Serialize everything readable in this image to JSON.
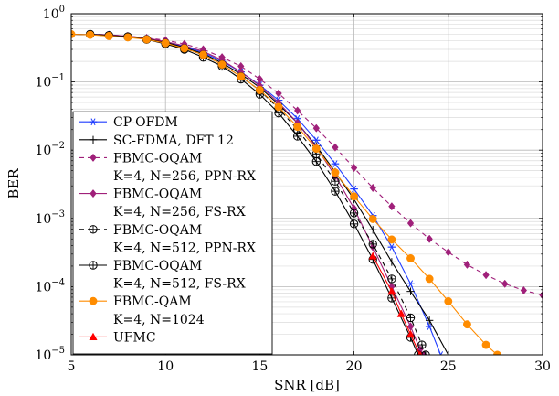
{
  "chart_data": {
    "type": "line",
    "xlabel": "SNR [dB]",
    "ylabel": "BER",
    "xlim": [
      5,
      30
    ],
    "ylim": [
      1e-05,
      1
    ],
    "yscale": "log",
    "grid": true,
    "legend_position": "bottom-left",
    "x_ticks": [
      "5",
      "10",
      "15",
      "20",
      "25",
      "30"
    ],
    "y_ticks": [
      {
        "base": "10",
        "exp": "0"
      },
      {
        "base": "10",
        "exp": "−1"
      },
      {
        "base": "10",
        "exp": "−2"
      },
      {
        "base": "10",
        "exp": "−3"
      },
      {
        "base": "10",
        "exp": "−4"
      },
      {
        "base": "10",
        "exp": "−5"
      }
    ],
    "series": [
      {
        "name": [
          "CP-OFDM"
        ],
        "color": "#1f3cff",
        "marker": "asterisk",
        "dash": "",
        "points": [
          [
            5,
            0.5
          ],
          [
            6,
            0.49
          ],
          [
            7,
            0.48
          ],
          [
            8,
            0.46
          ],
          [
            9,
            0.43
          ],
          [
            10,
            0.38
          ],
          [
            11,
            0.33
          ],
          [
            12,
            0.27
          ],
          [
            13,
            0.2
          ],
          [
            14,
            0.14
          ],
          [
            15,
            0.09
          ],
          [
            16,
            0.054
          ],
          [
            17,
            0.029
          ],
          [
            18,
            0.014
          ],
          [
            19,
            0.0063
          ],
          [
            20,
            0.0027
          ],
          [
            21,
            0.0011
          ],
          [
            22,
            0.00038
          ],
          [
            23,
            0.00011
          ],
          [
            24,
            2.6e-05
          ],
          [
            24.6,
            1e-05
          ]
        ]
      },
      {
        "name": [
          "SC-FDMA, DFT 12"
        ],
        "color": "#000000",
        "marker": "plus",
        "dash": "",
        "points": [
          [
            5,
            0.5
          ],
          [
            6,
            0.49
          ],
          [
            7,
            0.48
          ],
          [
            8,
            0.46
          ],
          [
            9,
            0.43
          ],
          [
            10,
            0.38
          ],
          [
            11,
            0.32
          ],
          [
            12,
            0.26
          ],
          [
            13,
            0.19
          ],
          [
            14,
            0.13
          ],
          [
            15,
            0.083
          ],
          [
            16,
            0.047
          ],
          [
            17,
            0.025
          ],
          [
            18,
            0.0115
          ],
          [
            19,
            0.0048
          ],
          [
            20,
            0.0019
          ],
          [
            21,
            0.00068
          ],
          [
            22,
            0.00023
          ],
          [
            23,
            8.5e-05
          ],
          [
            24,
            3.2e-05
          ],
          [
            25,
            1e-05
          ]
        ]
      },
      {
        "name": [
          "FBMC-OQAM",
          "K=4, N=256, PPN-RX"
        ],
        "color": "#a0207a",
        "marker": "diamond",
        "dash": "5,4",
        "points": [
          [
            6,
            0.5
          ],
          [
            7,
            0.49
          ],
          [
            8,
            0.47
          ],
          [
            9,
            0.44
          ],
          [
            10,
            0.41
          ],
          [
            11,
            0.36
          ],
          [
            12,
            0.3
          ],
          [
            13,
            0.23
          ],
          [
            14,
            0.17
          ],
          [
            15,
            0.11
          ],
          [
            16,
            0.068
          ],
          [
            17,
            0.038
          ],
          [
            18,
            0.021
          ],
          [
            19,
            0.011
          ],
          [
            20,
            0.0055
          ],
          [
            21,
            0.0028
          ],
          [
            22,
            0.0015
          ],
          [
            23,
            0.00085
          ],
          [
            24,
            0.0005
          ],
          [
            25,
            0.00032
          ],
          [
            26,
            0.00021
          ],
          [
            27,
            0.000148
          ],
          [
            28,
            0.00011
          ],
          [
            29,
            8.8e-05
          ],
          [
            30,
            7.5e-05
          ]
        ]
      },
      {
        "name": [
          "FBMC-OQAM",
          "K=4, N=256, FS-RX"
        ],
        "color": "#a0207a",
        "marker": "diamond",
        "dash": "",
        "points": [
          [
            6,
            0.5
          ],
          [
            7,
            0.49
          ],
          [
            8,
            0.47
          ],
          [
            9,
            0.44
          ],
          [
            10,
            0.39
          ],
          [
            11,
            0.34
          ],
          [
            12,
            0.28
          ],
          [
            13,
            0.21
          ],
          [
            14,
            0.14
          ],
          [
            15,
            0.088
          ],
          [
            16,
            0.05
          ],
          [
            17,
            0.025
          ],
          [
            18,
            0.011
          ],
          [
            19,
            0.0042
          ],
          [
            20,
            0.0014
          ],
          [
            21,
            0.00038
          ],
          [
            22,
            0.0001
          ],
          [
            23,
            2.6e-05
          ],
          [
            23.5,
            1.2e-05
          ],
          [
            23.7,
            1e-05
          ]
        ]
      },
      {
        "name": [
          "FBMC-OQAM",
          "K=4, N=512, PPN-RX"
        ],
        "color": "#000000",
        "marker": "circle-plus",
        "dash": "5,4",
        "points": [
          [
            6,
            0.5
          ],
          [
            7,
            0.48
          ],
          [
            8,
            0.46
          ],
          [
            9,
            0.42
          ],
          [
            10,
            0.37
          ],
          [
            11,
            0.31
          ],
          [
            12,
            0.25
          ],
          [
            13,
            0.18
          ],
          [
            14,
            0.12
          ],
          [
            15,
            0.075
          ],
          [
            16,
            0.041
          ],
          [
            17,
            0.02
          ],
          [
            18,
            0.0088
          ],
          [
            19,
            0.0035
          ],
          [
            20,
            0.0012
          ],
          [
            21,
            0.00042
          ],
          [
            22,
            0.00013
          ],
          [
            23,
            3.5e-05
          ],
          [
            23.6,
            1.4e-05
          ],
          [
            23.8,
            1e-05
          ]
        ]
      },
      {
        "name": [
          "FBMC-OQAM",
          "K=4, N=512, FS-RX"
        ],
        "color": "#000000",
        "marker": "circle-plus",
        "dash": "",
        "points": [
          [
            6,
            0.5
          ],
          [
            7,
            0.48
          ],
          [
            8,
            0.46
          ],
          [
            9,
            0.42
          ],
          [
            10,
            0.36
          ],
          [
            11,
            0.3
          ],
          [
            12,
            0.23
          ],
          [
            13,
            0.17
          ],
          [
            14,
            0.11
          ],
          [
            15,
            0.066
          ],
          [
            16,
            0.035
          ],
          [
            17,
            0.016
          ],
          [
            18,
            0.0068
          ],
          [
            19,
            0.0025
          ],
          [
            20,
            0.00083
          ],
          [
            21,
            0.00025
          ],
          [
            22,
            6.8e-05
          ],
          [
            23,
            1.8e-05
          ],
          [
            23.4,
            1e-05
          ]
        ]
      },
      {
        "name": [
          "FBMC-QAM",
          "K=4, N=1024"
        ],
        "color": "#ff8c00",
        "marker": "circle",
        "dash": "",
        "points": [
          [
            5,
            0.5
          ],
          [
            6,
            0.49
          ],
          [
            7,
            0.47
          ],
          [
            8,
            0.45
          ],
          [
            9,
            0.42
          ],
          [
            10,
            0.37
          ],
          [
            11,
            0.31
          ],
          [
            12,
            0.25
          ],
          [
            13,
            0.18
          ],
          [
            14,
            0.12
          ],
          [
            15,
            0.076
          ],
          [
            16,
            0.043
          ],
          [
            17,
            0.022
          ],
          [
            18,
            0.0105
          ],
          [
            19,
            0.0047
          ],
          [
            20,
            0.0021
          ],
          [
            21,
            0.00098
          ],
          [
            22,
            0.00049
          ],
          [
            23,
            0.00026
          ],
          [
            24,
            0.00013
          ],
          [
            25,
            6.1e-05
          ],
          [
            26,
            2.8e-05
          ],
          [
            27,
            1.4e-05
          ],
          [
            27.6,
            1e-05
          ]
        ]
      },
      {
        "name": [
          "UFMC"
        ],
        "color": "#ff0000",
        "marker": "triangle",
        "dash": "",
        "points": [
          [
            21,
            0.00028
          ],
          [
            22,
            8.5e-05
          ],
          [
            22.5,
            4e-05
          ],
          [
            23,
            2e-05
          ],
          [
            23.5,
            1e-05
          ]
        ]
      }
    ]
  }
}
